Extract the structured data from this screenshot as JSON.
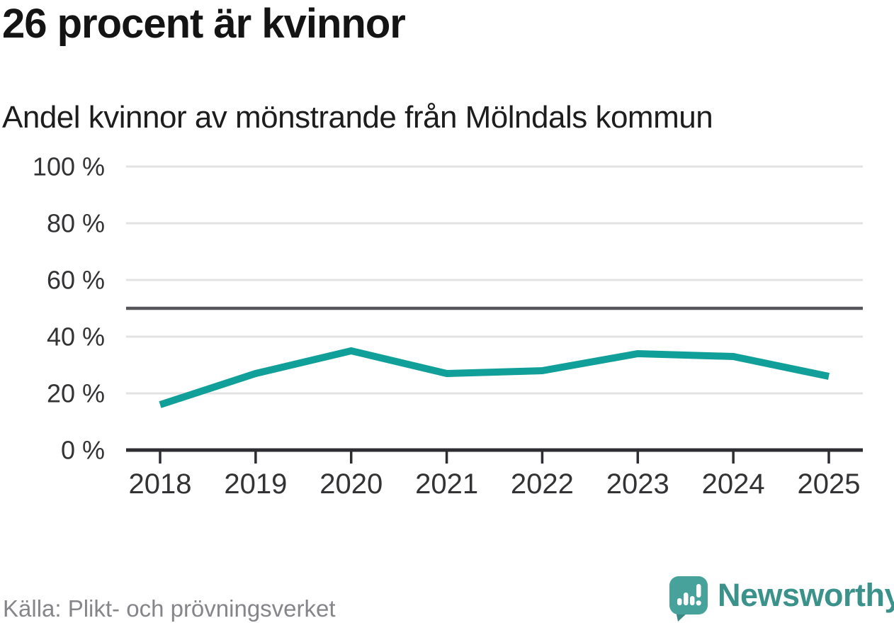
{
  "header": {
    "title": "26 procent är kvinnor",
    "subtitle": "Andel kvinnor av mönstrande från Mölndals kommun"
  },
  "chart_data": {
    "type": "line",
    "title": "26 procent är kvinnor",
    "subtitle": "Andel kvinnor av mönstrande från Mölndals kommun",
    "x": [
      "2018",
      "2019",
      "2020",
      "2021",
      "2022",
      "2023",
      "2024",
      "2025"
    ],
    "series": [
      {
        "name": "Andel kvinnor av mönstrande",
        "values": [
          16,
          27,
          35,
          27,
          28,
          34,
          33,
          26
        ],
        "unit": "%"
      }
    ],
    "xlabel": "",
    "ylabel": "",
    "ylim": [
      0,
      100
    ],
    "grid": true,
    "legend": "none",
    "y_axis": {
      "ticks": [
        "100 %",
        "80 %",
        "60 %",
        "40 %",
        "20 %",
        "0 %"
      ],
      "tick_values": [
        100,
        80,
        60,
        40,
        20,
        0
      ]
    },
    "reference_line": {
      "value": 50
    },
    "colors": {
      "line": "#10a099",
      "grid": "#e3e3e3",
      "reference": "#55555a",
      "axis": "#2e2e32",
      "tick_text": "#333336"
    }
  },
  "footer": {
    "source": "Källa: Plikt- och prövningsverket",
    "brand": {
      "name": "Newsworthy",
      "icon": "newsworthy-logo-icon",
      "icon_color": "#47a29b",
      "wordmark_color": "#3a928b"
    }
  }
}
